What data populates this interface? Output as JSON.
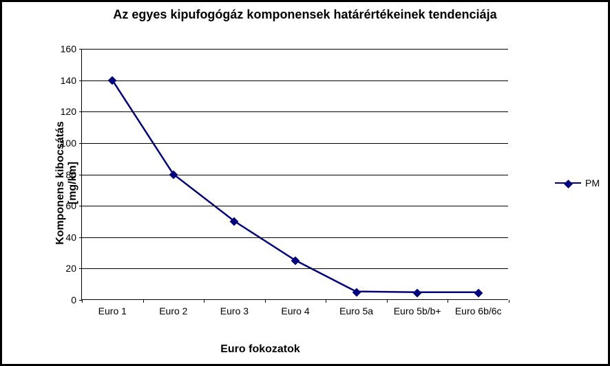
{
  "chart": {
    "type": "line",
    "title": "Az egyes kipufogógáz komponensek határértékeinek tendenciája",
    "title_fontsize": 18,
    "x_axis_label": "Euro fokozatok",
    "y_axis_label_line1": "Komponens kibocsátás",
    "y_axis_label_line2": "[mg/km]",
    "axis_label_fontsize": 16,
    "tick_fontsize": 14,
    "background_color": "#ffffff",
    "border_color": "#000000",
    "gridline_color": "#000000",
    "axis_color": "#000000",
    "ylim": [
      0,
      160
    ],
    "ytick_step": 20,
    "categories": [
      "Euro 1",
      "Euro 2",
      "Euro 3",
      "Euro 4",
      "Euro 5a",
      "Euro 5b/b+",
      "Euro 6b/6c"
    ],
    "series": {
      "name": "PM",
      "values": [
        140,
        80,
        50,
        25,
        5,
        4.5,
        4.5
      ],
      "line_color": "#000080",
      "line_width": 2.5,
      "marker_style": "diamond",
      "marker_size": 9,
      "marker_color": "#000080"
    },
    "legend_position": "right"
  }
}
